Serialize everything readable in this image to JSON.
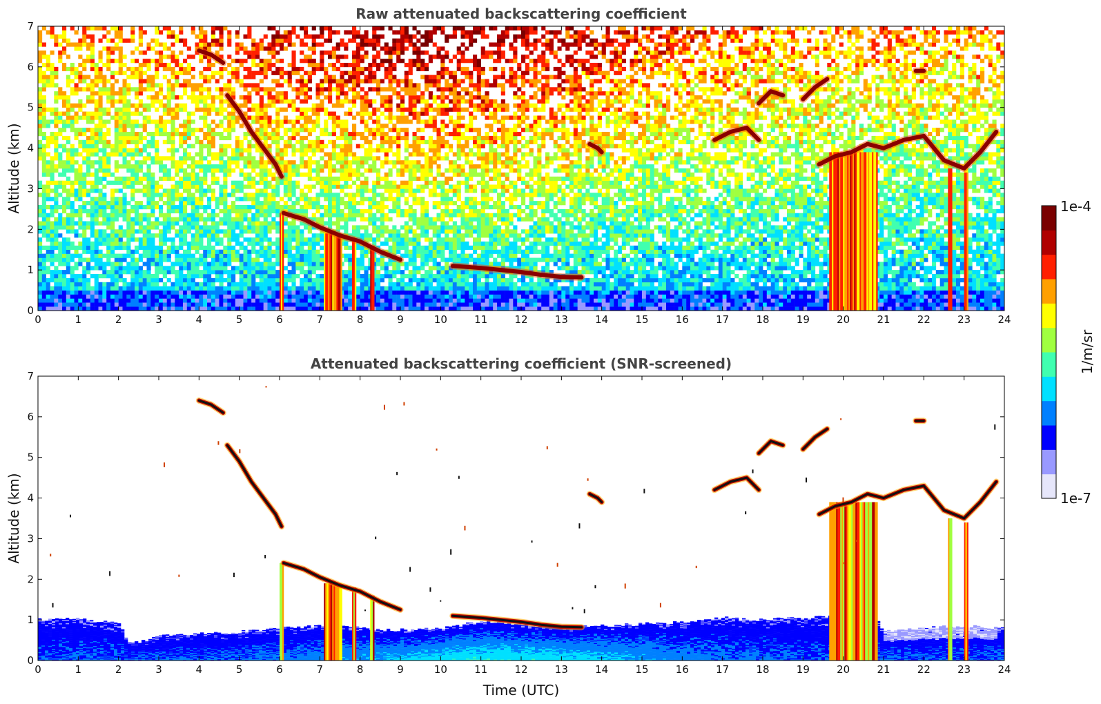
{
  "chart_data": [
    {
      "type": "heatmap",
      "title": "Raw attenuated backscattering coefficient",
      "xlabel": "",
      "ylabel": "Altitude (km)",
      "xlim": [
        0,
        24
      ],
      "ylim": [
        0,
        7
      ],
      "x_ticks": [
        "0",
        "1",
        "2",
        "3",
        "4",
        "5",
        "6",
        "7",
        "8",
        "9",
        "10",
        "11",
        "12",
        "13",
        "14",
        "15",
        "16",
        "17",
        "18",
        "19",
        "20",
        "21",
        "22",
        "23",
        "24"
      ],
      "y_ticks": [
        "0",
        "1",
        "2",
        "3",
        "4",
        "5",
        "6",
        "7"
      ],
      "grid": false,
      "cloud_layers": [
        {
          "x": [
            4.0,
            4.3,
            4.6
          ],
          "y": [
            6.4,
            6.3,
            6.1
          ]
        },
        {
          "x": [
            4.7,
            5.0,
            5.3,
            5.6,
            5.9,
            6.05
          ],
          "y": [
            5.3,
            4.9,
            4.4,
            4.0,
            3.6,
            3.3
          ]
        },
        {
          "x": [
            6.1,
            6.6,
            7.0,
            7.5,
            8.0,
            8.5,
            9.0
          ],
          "y": [
            2.4,
            2.25,
            2.05,
            1.85,
            1.7,
            1.45,
            1.25
          ]
        },
        {
          "x": [
            10.3,
            11.0,
            11.5,
            12.0,
            12.5,
            13.0,
            13.5
          ],
          "y": [
            1.1,
            1.05,
            1.0,
            0.95,
            0.88,
            0.83,
            0.82
          ]
        },
        {
          "x": [
            13.7,
            13.9,
            14.0
          ],
          "y": [
            4.1,
            4.0,
            3.9
          ]
        },
        {
          "x": [
            16.8,
            17.2,
            17.6,
            17.9
          ],
          "y": [
            4.2,
            4.4,
            4.5,
            4.2
          ]
        },
        {
          "x": [
            17.9,
            18.2,
            18.5
          ],
          "y": [
            5.1,
            5.4,
            5.3
          ]
        },
        {
          "x": [
            19.0,
            19.3,
            19.6
          ],
          "y": [
            5.2,
            5.5,
            5.7
          ]
        },
        {
          "x": [
            19.4,
            19.8,
            20.2,
            20.6,
            21.0,
            21.5,
            22.0,
            22.5,
            23.0,
            23.4,
            23.8
          ],
          "y": [
            3.6,
            3.8,
            3.9,
            4.1,
            4.0,
            4.2,
            4.3,
            3.7,
            3.5,
            3.9,
            4.4
          ]
        },
        {
          "x": [
            21.8,
            22.0
          ],
          "y": [
            5.9,
            5.9
          ]
        }
      ],
      "precip_columns": [
        {
          "x": [
            7.1,
            7.55
          ],
          "top": 1.9
        },
        {
          "x": [
            7.8,
            7.9
          ],
          "top": 1.8
        },
        {
          "x": [
            8.25,
            8.35
          ],
          "top": 1.6
        },
        {
          "x": [
            6.0,
            6.1
          ],
          "top": 2.4
        },
        {
          "x": [
            19.65,
            20.85
          ],
          "top": 3.9
        },
        {
          "x": [
            22.6,
            22.7
          ],
          "top": 3.5
        },
        {
          "x": [
            23.0,
            23.1
          ],
          "top": 3.4
        }
      ]
    },
    {
      "type": "heatmap",
      "title": "Attenuated backscattering coefficient (SNR-screened)",
      "xlabel": "Time (UTC)",
      "ylabel": "Altitude (km)",
      "xlim": [
        0,
        24
      ],
      "ylim": [
        0,
        7
      ],
      "x_ticks": [
        "0",
        "1",
        "2",
        "3",
        "4",
        "5",
        "6",
        "7",
        "8",
        "9",
        "10",
        "11",
        "12",
        "13",
        "14",
        "15",
        "16",
        "17",
        "18",
        "19",
        "20",
        "21",
        "22",
        "23",
        "24"
      ],
      "y_ticks": [
        "0",
        "1",
        "2",
        "3",
        "4",
        "5",
        "6",
        "7"
      ],
      "grid": false,
      "boundary_layer_top": {
        "x": [
          0,
          1,
          2,
          2.3,
          3,
          4,
          5,
          6,
          7,
          8,
          9,
          10,
          11,
          12,
          13,
          14,
          15,
          16,
          17,
          18,
          19,
          19.6,
          20.9,
          21,
          22,
          23,
          23.8
        ],
        "y": [
          1.0,
          1.05,
          0.9,
          0.4,
          0.6,
          0.65,
          0.7,
          0.8,
          0.85,
          0.8,
          0.75,
          0.8,
          0.95,
          0.9,
          0.8,
          0.85,
          0.9,
          0.95,
          1.05,
          1.0,
          1.05,
          1.1,
          1.0,
          0.7,
          0.8,
          0.85,
          0.8
        ]
      }
    }
  ],
  "colorbar": {
    "label": "1/m/sr",
    "max_label": "1e-4",
    "min_label": "1e-7",
    "colors": [
      "#e6e6fa",
      "#9999ff",
      "#0000ff",
      "#0080ff",
      "#00e0ff",
      "#40ffb0",
      "#a0ff40",
      "#ffff00",
      "#ffa000",
      "#ff2000",
      "#b00000",
      "#7a0000"
    ]
  }
}
